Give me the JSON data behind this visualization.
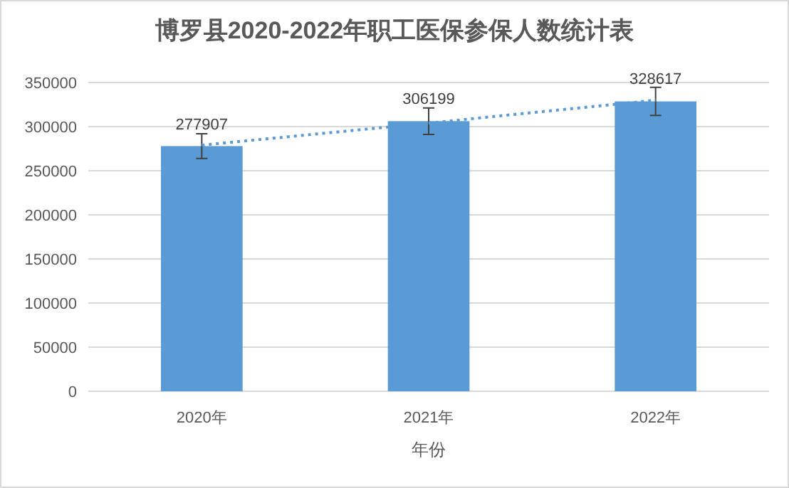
{
  "chart_data": {
    "type": "bar",
    "title": "博罗县2020-2022年职工医保参保人数统计表",
    "xlabel": "年份",
    "categories": [
      "2020年",
      "2021年",
      "2022年"
    ],
    "series": [
      {
        "color": "#5b9bd5",
        "values": [
          277907,
          306199,
          328617
        ],
        "errors": [
          14000,
          15000,
          16000
        ],
        "value_labels": [
          "277907",
          "306199",
          "328617"
        ]
      },
      {
        "type": "line",
        "color": "#5b9bd5",
        "line_style": "dotted",
        "values": [
          279000,
          304000,
          330000
        ]
      }
    ],
    "ylim": [
      0,
      350000
    ],
    "yticks": [
      0,
      50000,
      100000,
      150000,
      200000,
      250000,
      300000,
      350000
    ],
    "grid": "y"
  }
}
